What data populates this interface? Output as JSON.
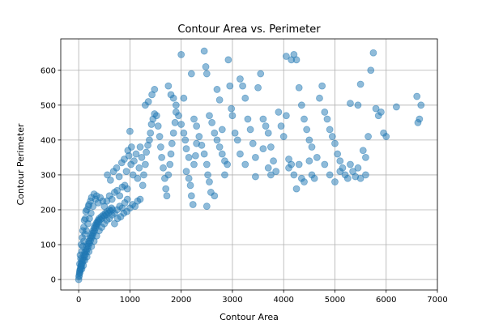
{
  "chart_data": {
    "type": "scatter",
    "title": "Contour Area vs. Perimeter",
    "xlabel": "Contour Area",
    "ylabel": "Contour Perimeter",
    "xlim": [
      -350,
      7000
    ],
    "ylim": [
      -30,
      690
    ],
    "xticks": [
      0,
      1000,
      2000,
      3000,
      4000,
      5000,
      6000,
      7000
    ],
    "yticks": [
      0,
      100,
      200,
      300,
      400,
      500,
      600
    ],
    "grid": true,
    "legend": "none",
    "marker_color": "#1f77b4",
    "marker_opacity": 0.5,
    "series": [
      {
        "points": [
          [
            0,
            0
          ],
          [
            5,
            8
          ],
          [
            10,
            12
          ],
          [
            15,
            18
          ],
          [
            20,
            25
          ],
          [
            25,
            20
          ],
          [
            30,
            30
          ],
          [
            35,
            28
          ],
          [
            40,
            38
          ],
          [
            45,
            35
          ],
          [
            50,
            45
          ],
          [
            55,
            40
          ],
          [
            60,
            52
          ],
          [
            70,
            48
          ],
          [
            80,
            60
          ],
          [
            90,
            55
          ],
          [
            100,
            70
          ],
          [
            110,
            65
          ],
          [
            120,
            78
          ],
          [
            130,
            72
          ],
          [
            140,
            85
          ],
          [
            150,
            80
          ],
          [
            160,
            95
          ],
          [
            170,
            88
          ],
          [
            180,
            102
          ],
          [
            190,
            96
          ],
          [
            200,
            110
          ],
          [
            210,
            104
          ],
          [
            220,
            118
          ],
          [
            230,
            112
          ],
          [
            240,
            125
          ],
          [
            250,
            120
          ],
          [
            260,
            132
          ],
          [
            270,
            126
          ],
          [
            280,
            140
          ],
          [
            290,
            134
          ],
          [
            300,
            148
          ],
          [
            310,
            140
          ],
          [
            320,
            155
          ],
          [
            330,
            148
          ],
          [
            340,
            160
          ],
          [
            350,
            155
          ],
          [
            360,
            165
          ],
          [
            370,
            160
          ],
          [
            380,
            170
          ],
          [
            390,
            166
          ],
          [
            400,
            175
          ],
          [
            420,
            172
          ],
          [
            440,
            180
          ],
          [
            460,
            176
          ],
          [
            480,
            185
          ],
          [
            500,
            182
          ],
          [
            520,
            190
          ],
          [
            540,
            186
          ],
          [
            560,
            195
          ],
          [
            580,
            190
          ],
          [
            600,
            200
          ],
          [
            620,
            196
          ],
          [
            640,
            205
          ],
          [
            660,
            200
          ],
          [
            20,
            45
          ],
          [
            40,
            60
          ],
          [
            60,
            80
          ],
          [
            80,
            95
          ],
          [
            100,
            110
          ],
          [
            120,
            130
          ],
          [
            150,
            140
          ],
          [
            180,
            160
          ],
          [
            210,
            175
          ],
          [
            240,
            190
          ],
          [
            60,
            30
          ],
          [
            90,
            40
          ],
          [
            120,
            55
          ],
          [
            160,
            65
          ],
          [
            200,
            80
          ],
          [
            250,
            95
          ],
          [
            300,
            110
          ],
          [
            350,
            125
          ],
          [
            400,
            140
          ],
          [
            450,
            150
          ],
          [
            30,
            70
          ],
          [
            50,
            100
          ],
          [
            70,
            120
          ],
          [
            100,
            150
          ],
          [
            130,
            175
          ],
          [
            160,
            200
          ],
          [
            200,
            215
          ],
          [
            250,
            235
          ],
          [
            300,
            245
          ],
          [
            350,
            240
          ],
          [
            80,
            140
          ],
          [
            110,
            170
          ],
          [
            140,
            195
          ],
          [
            190,
            210
          ],
          [
            230,
            225
          ],
          [
            280,
            210
          ],
          [
            330,
            230
          ],
          [
            380,
            220
          ],
          [
            420,
            235
          ],
          [
            470,
            225
          ],
          [
            500,
            160
          ],
          [
            550,
            170
          ],
          [
            600,
            175
          ],
          [
            650,
            185
          ],
          [
            700,
            190
          ],
          [
            750,
            200
          ],
          [
            800,
            210
          ],
          [
            850,
            205
          ],
          [
            900,
            220
          ],
          [
            950,
            230
          ],
          [
            500,
            210
          ],
          [
            550,
            225
          ],
          [
            600,
            240
          ],
          [
            650,
            230
          ],
          [
            700,
            250
          ],
          [
            750,
            255
          ],
          [
            800,
            240
          ],
          [
            850,
            265
          ],
          [
            900,
            270
          ],
          [
            950,
            260
          ],
          [
            700,
            160
          ],
          [
            760,
            175
          ],
          [
            820,
            180
          ],
          [
            880,
            190
          ],
          [
            940,
            195
          ],
          [
            1000,
            205
          ],
          [
            1050,
            215
          ],
          [
            1100,
            210
          ],
          [
            1150,
            225
          ],
          [
            1200,
            230
          ],
          [
            560,
            300
          ],
          [
            620,
            285
          ],
          [
            680,
            310
          ],
          [
            740,
            320
          ],
          [
            790,
            295
          ],
          [
            840,
            335
          ],
          [
            890,
            345
          ],
          [
            930,
            310
          ],
          [
            980,
            355
          ],
          [
            1020,
            330
          ],
          [
            1000,
            425
          ],
          [
            960,
            370
          ],
          [
            1030,
            380
          ],
          [
            1060,
            300
          ],
          [
            1080,
            340
          ],
          [
            1120,
            360
          ],
          [
            1150,
            290
          ],
          [
            1180,
            320
          ],
          [
            1200,
            380
          ],
          [
            1230,
            350
          ],
          [
            1250,
            270
          ],
          [
            1270,
            300
          ],
          [
            1300,
            330
          ],
          [
            1320,
            365
          ],
          [
            1350,
            385
          ],
          [
            1380,
            400
          ],
          [
            1400,
            420
          ],
          [
            1420,
            445
          ],
          [
            1450,
            460
          ],
          [
            1480,
            475
          ],
          [
            1300,
            500
          ],
          [
            1360,
            510
          ],
          [
            1430,
            530
          ],
          [
            1480,
            545
          ],
          [
            1520,
            470
          ],
          [
            1550,
            440
          ],
          [
            1580,
            410
          ],
          [
            1600,
            380
          ],
          [
            1620,
            350
          ],
          [
            1650,
            320
          ],
          [
            1680,
            290
          ],
          [
            1700,
            260
          ],
          [
            1720,
            240
          ],
          [
            1750,
            300
          ],
          [
            1780,
            330
          ],
          [
            1800,
            360
          ],
          [
            1820,
            390
          ],
          [
            1850,
            420
          ],
          [
            1880,
            450
          ],
          [
            1900,
            480
          ],
          [
            1750,
            555
          ],
          [
            1800,
            530
          ],
          [
            1850,
            520
          ],
          [
            1900,
            500
          ],
          [
            1950,
            470
          ],
          [
            2000,
            445
          ],
          [
            2050,
            420
          ],
          [
            2080,
            400
          ],
          [
            2100,
            375
          ],
          [
            2150,
            350
          ],
          [
            2000,
            645
          ],
          [
            2050,
            520
          ],
          [
            2100,
            310
          ],
          [
            2150,
            290
          ],
          [
            2180,
            270
          ],
          [
            2200,
            240
          ],
          [
            2230,
            215
          ],
          [
            2250,
            330
          ],
          [
            2280,
            355
          ],
          [
            2300,
            390
          ],
          [
            2200,
            590
          ],
          [
            2250,
            460
          ],
          [
            2300,
            440
          ],
          [
            2350,
            410
          ],
          [
            2400,
            385
          ],
          [
            2450,
            360
          ],
          [
            2500,
            330
          ],
          [
            2520,
            300
          ],
          [
            2550,
            280
          ],
          [
            2580,
            250
          ],
          [
            2450,
            655
          ],
          [
            2480,
            610
          ],
          [
            2500,
            590
          ],
          [
            2550,
            470
          ],
          [
            2600,
            450
          ],
          [
            2650,
            420
          ],
          [
            2700,
            400
          ],
          [
            2750,
            380
          ],
          [
            2800,
            360
          ],
          [
            2850,
            340
          ],
          [
            2500,
            210
          ],
          [
            2650,
            240
          ],
          [
            2700,
            545
          ],
          [
            2750,
            515
          ],
          [
            2800,
            430
          ],
          [
            2850,
            300
          ],
          [
            2900,
            330
          ],
          [
            2920,
            630
          ],
          [
            2950,
            555
          ],
          [
            2980,
            490
          ],
          [
            3000,
            470
          ],
          [
            3050,
            420
          ],
          [
            3100,
            400
          ],
          [
            3150,
            575
          ],
          [
            3200,
            555
          ],
          [
            3250,
            520
          ],
          [
            3300,
            460
          ],
          [
            3350,
            430
          ],
          [
            3400,
            390
          ],
          [
            3450,
            350
          ],
          [
            3150,
            360
          ],
          [
            3250,
            330
          ],
          [
            3450,
            295
          ],
          [
            3500,
            550
          ],
          [
            3550,
            590
          ],
          [
            3600,
            460
          ],
          [
            3650,
            440
          ],
          [
            3700,
            420
          ],
          [
            3750,
            380
          ],
          [
            3800,
            340
          ],
          [
            3600,
            375
          ],
          [
            3700,
            320
          ],
          [
            3750,
            300
          ],
          [
            3850,
            310
          ],
          [
            3900,
            480
          ],
          [
            3950,
            440
          ],
          [
            4000,
            410
          ],
          [
            4050,
            470
          ],
          [
            4100,
            345
          ],
          [
            4150,
            330
          ],
          [
            4050,
            640
          ],
          [
            4150,
            630
          ],
          [
            4200,
            645
          ],
          [
            4250,
            630
          ],
          [
            4300,
            550
          ],
          [
            4350,
            500
          ],
          [
            4400,
            460
          ],
          [
            4450,
            430
          ],
          [
            4500,
            400
          ],
          [
            4550,
            380
          ],
          [
            4100,
            320
          ],
          [
            4200,
            300
          ],
          [
            4250,
            260
          ],
          [
            4300,
            330
          ],
          [
            4350,
            290
          ],
          [
            4400,
            280
          ],
          [
            4500,
            340
          ],
          [
            4550,
            300
          ],
          [
            4600,
            290
          ],
          [
            4650,
            350
          ],
          [
            4700,
            520
          ],
          [
            4750,
            555
          ],
          [
            4800,
            480
          ],
          [
            4850,
            460
          ],
          [
            4900,
            430
          ],
          [
            4950,
            410
          ],
          [
            5000,
            390
          ],
          [
            5050,
            360
          ],
          [
            5100,
            340
          ],
          [
            5150,
            320
          ],
          [
            4800,
            330
          ],
          [
            4900,
            300
          ],
          [
            5000,
            280
          ],
          [
            5100,
            310
          ],
          [
            5200,
            300
          ],
          [
            5250,
            290
          ],
          [
            5300,
            330
          ],
          [
            5350,
            310
          ],
          [
            5400,
            295
          ],
          [
            5450,
            320
          ],
          [
            5300,
            505
          ],
          [
            5450,
            500
          ],
          [
            5500,
            560
          ],
          [
            5550,
            370
          ],
          [
            5600,
            350
          ],
          [
            5650,
            410
          ],
          [
            5700,
            600
          ],
          [
            5750,
            650
          ],
          [
            5800,
            490
          ],
          [
            5850,
            470
          ],
          [
            5900,
            480
          ],
          [
            5950,
            420
          ],
          [
            6000,
            410
          ],
          [
            6200,
            495
          ],
          [
            6600,
            525
          ],
          [
            6620,
            450
          ],
          [
            6650,
            460
          ],
          [
            6680,
            500
          ],
          [
            5500,
            290
          ],
          [
            5600,
            300
          ]
        ]
      }
    ]
  }
}
